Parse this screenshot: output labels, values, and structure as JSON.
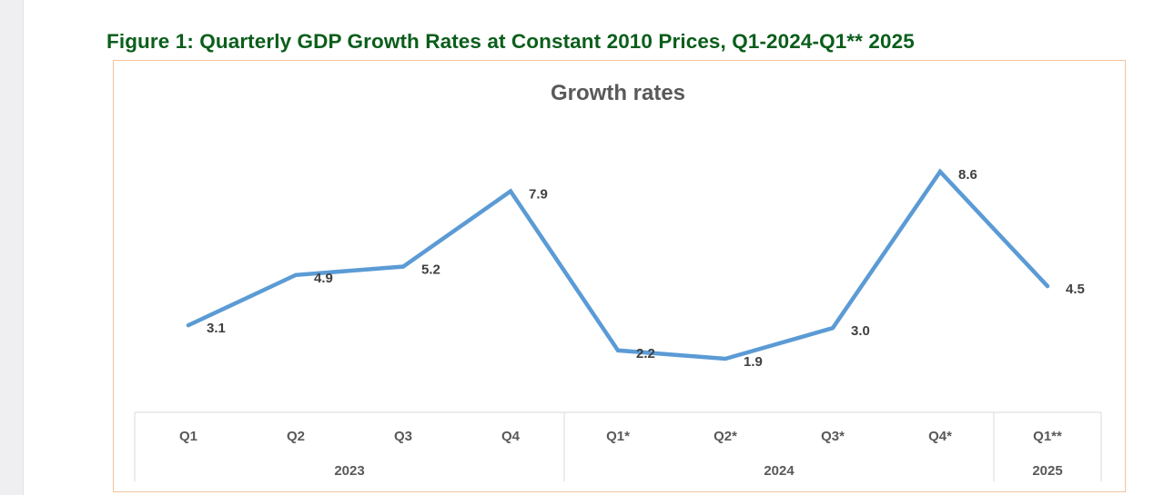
{
  "figure_title": "Figure 1: Quarterly GDP Growth Rates at Constant 2010 Prices, Q1-2024-Q1** 2025",
  "colors": {
    "line": "#5b9bd5",
    "title": "#0b5e1b",
    "frame": "#f4c49c"
  },
  "chart_data": {
    "type": "line",
    "title": "Growth rates",
    "categories": [
      "Q1",
      "Q2",
      "Q3",
      "Q4",
      "Q1*",
      "Q2*",
      "Q3*",
      "Q4*",
      "Q1**"
    ],
    "groups": [
      {
        "label": "2023",
        "count": 4
      },
      {
        "label": "2024",
        "count": 4
      },
      {
        "label": "2025",
        "count": 1
      }
    ],
    "series": [
      {
        "values": [
          3.1,
          4.9,
          5.2,
          7.9,
          2.2,
          1.9,
          3.0,
          8.6,
          4.5
        ]
      }
    ],
    "data_labels": [
      "3.1",
      "4.9",
      "5.2",
      "7.9",
      "2.2",
      "1.9",
      "3.0",
      "8.6",
      "4.5"
    ],
    "grid": false,
    "legend": "none"
  }
}
